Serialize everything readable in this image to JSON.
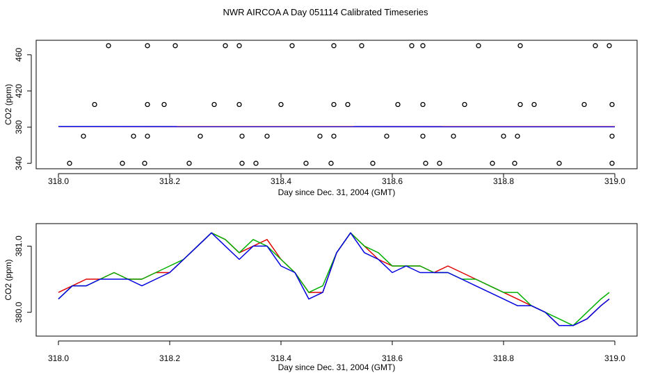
{
  "title": "NWR AIRCOA A  Day 051114  Calibrated Timeseries",
  "colors": {
    "red": "#e00000",
    "green": "#00b000",
    "blue": "#0000e0",
    "axis": "#000000"
  },
  "chart_data": [
    {
      "type": "scatter",
      "xlabel": "Day since Dec. 31, 2004 (GMT)",
      "ylabel": "CO2 (ppm)",
      "xlim": [
        318.0,
        319.0
      ],
      "ylim": [
        334,
        476
      ],
      "xticks": [
        "318.0",
        "318.2",
        "318.4",
        "318.6",
        "318.8",
        "319.0"
      ],
      "yticks": [
        "340",
        "380",
        "420",
        "460"
      ],
      "points": [
        [
          318.09,
          470
        ],
        [
          318.16,
          470
        ],
        [
          318.21,
          470
        ],
        [
          318.3,
          470
        ],
        [
          318.325,
          470
        ],
        [
          318.42,
          470
        ],
        [
          318.495,
          470
        ],
        [
          318.545,
          470
        ],
        [
          318.635,
          470
        ],
        [
          318.655,
          470
        ],
        [
          318.755,
          470
        ],
        [
          318.83,
          470
        ],
        [
          318.965,
          470
        ],
        [
          318.99,
          470
        ],
        [
          318.065,
          405
        ],
        [
          318.16,
          405
        ],
        [
          318.19,
          405
        ],
        [
          318.28,
          405
        ],
        [
          318.325,
          405
        ],
        [
          318.4,
          405
        ],
        [
          318.495,
          405
        ],
        [
          318.52,
          405
        ],
        [
          318.61,
          405
        ],
        [
          318.655,
          405
        ],
        [
          318.73,
          405
        ],
        [
          318.83,
          405
        ],
        [
          318.855,
          405
        ],
        [
          318.945,
          405
        ],
        [
          318.995,
          405
        ],
        [
          318.045,
          370
        ],
        [
          318.135,
          370
        ],
        [
          318.16,
          370
        ],
        [
          318.255,
          370
        ],
        [
          318.33,
          370
        ],
        [
          318.375,
          370
        ],
        [
          318.47,
          370
        ],
        [
          318.495,
          370
        ],
        [
          318.59,
          370
        ],
        [
          318.655,
          370
        ],
        [
          318.71,
          370
        ],
        [
          318.8,
          370
        ],
        [
          318.825,
          370
        ],
        [
          318.995,
          370
        ],
        [
          318.02,
          340
        ],
        [
          318.115,
          340
        ],
        [
          318.155,
          340
        ],
        [
          318.235,
          340
        ],
        [
          318.33,
          340
        ],
        [
          318.355,
          340
        ],
        [
          318.445,
          340
        ],
        [
          318.49,
          340
        ],
        [
          318.565,
          340
        ],
        [
          318.66,
          340
        ],
        [
          318.685,
          340
        ],
        [
          318.78,
          340
        ],
        [
          318.82,
          340
        ],
        [
          318.9,
          340
        ],
        [
          318.995,
          340
        ]
      ],
      "series": [
        {
          "color": "red",
          "x": [
            318.0,
            319.0
          ],
          "y": [
            380.5,
            380.5
          ]
        },
        {
          "color": "blue",
          "x": [
            318.0,
            319.0
          ],
          "y": [
            380.6,
            380.4
          ]
        }
      ]
    },
    {
      "type": "line",
      "xlabel": "Day since Dec. 31, 2004 (GMT)",
      "ylabel": "CO2 (ppm)",
      "xlim": [
        318.0,
        319.0
      ],
      "ylim": [
        379.64,
        381.34
      ],
      "xticks": [
        "318.0",
        "318.2",
        "318.4",
        "318.6",
        "318.8",
        "319.0"
      ],
      "yticks": [
        "380.0",
        "381.0"
      ],
      "x": [
        318.0,
        318.025,
        318.05,
        318.075,
        318.1,
        318.125,
        318.15,
        318.175,
        318.2,
        318.225,
        318.25,
        318.275,
        318.3,
        318.325,
        318.35,
        318.375,
        318.4,
        318.425,
        318.45,
        318.475,
        318.5,
        318.525,
        318.55,
        318.575,
        318.6,
        318.625,
        318.65,
        318.675,
        318.7,
        318.725,
        318.75,
        318.775,
        318.8,
        318.825,
        318.85,
        318.875,
        318.9,
        318.925,
        318.95,
        318.975,
        318.99
      ],
      "series": [
        {
          "color": "red",
          "values": [
            380.3,
            380.4,
            380.5,
            380.5,
            380.6,
            380.5,
            380.5,
            380.6,
            380.6,
            380.8,
            381.0,
            381.2,
            381.1,
            380.9,
            381.0,
            381.1,
            380.8,
            380.6,
            380.3,
            380.3,
            380.9,
            381.2,
            381.0,
            380.8,
            380.7,
            380.7,
            380.7,
            380.6,
            380.7,
            380.6,
            380.5,
            380.4,
            380.3,
            380.2,
            380.1,
            380.0,
            379.8,
            379.8,
            379.9,
            380.1,
            380.2
          ]
        },
        {
          "color": "green",
          "values": [
            380.2,
            380.4,
            380.4,
            380.5,
            380.6,
            380.5,
            380.5,
            380.6,
            380.7,
            380.8,
            381.0,
            381.2,
            381.1,
            380.9,
            381.1,
            381.0,
            380.8,
            380.6,
            380.3,
            380.4,
            380.9,
            381.2,
            381.0,
            380.9,
            380.7,
            380.7,
            380.7,
            380.6,
            380.6,
            380.5,
            380.5,
            380.4,
            380.3,
            380.3,
            380.1,
            380.0,
            379.9,
            379.8,
            380.0,
            380.2,
            380.3
          ]
        },
        {
          "color": "blue",
          "values": [
            380.2,
            380.4,
            380.4,
            380.5,
            380.5,
            380.5,
            380.4,
            380.5,
            380.6,
            380.8,
            381.0,
            381.2,
            381.0,
            380.8,
            381.0,
            381.0,
            380.7,
            380.6,
            380.2,
            380.3,
            380.9,
            381.2,
            380.9,
            380.8,
            380.6,
            380.7,
            380.6,
            380.6,
            380.6,
            380.5,
            380.4,
            380.3,
            380.2,
            380.1,
            380.1,
            380.0,
            379.8,
            379.8,
            379.9,
            380.1,
            380.2
          ]
        }
      ]
    }
  ]
}
